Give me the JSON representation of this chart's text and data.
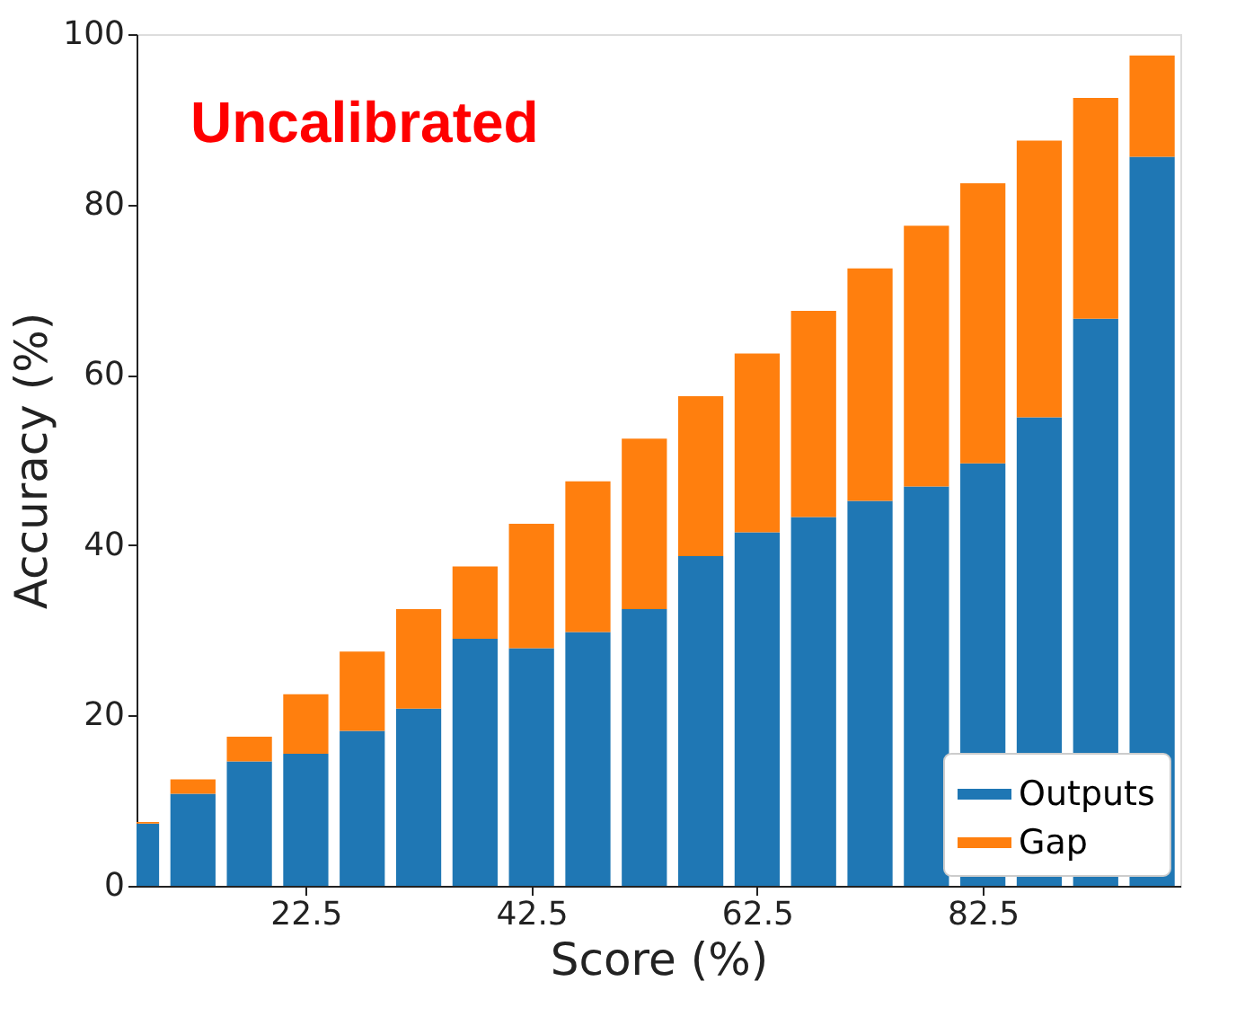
{
  "chart_data": {
    "type": "bar",
    "stacked": true,
    "xlabel": "Score (%)",
    "ylabel": "Accuracy (%)",
    "annotations": [
      "Uncalibrated"
    ],
    "x": [
      7.5,
      12.5,
      17.5,
      22.5,
      27.5,
      32.5,
      37.5,
      42.5,
      47.5,
      52.5,
      57.5,
      62.5,
      67.5,
      72.5,
      77.5,
      82.5,
      87.5,
      92.5,
      97.5
    ],
    "series": [
      {
        "name": "Outputs",
        "color": "#1f77b4",
        "values": [
          7.3,
          10.8,
          14.6,
          15.5,
          18.2,
          20.8,
          29.0,
          27.9,
          29.8,
          32.5,
          38.7,
          41.5,
          43.3,
          45.2,
          46.9,
          49.6,
          55.0,
          66.6,
          85.6
        ]
      },
      {
        "name": "Gap",
        "color": "#ff7f0e",
        "values": [
          0.2,
          1.7,
          2.9,
          7.0,
          9.3,
          11.7,
          8.5,
          14.6,
          17.7,
          20.0,
          18.8,
          21.0,
          24.2,
          27.3,
          30.6,
          32.9,
          32.5,
          25.9,
          11.9
        ]
      }
    ],
    "xlim": [
      7.5,
      100
    ],
    "xticks": [
      22.5,
      42.5,
      62.5,
      82.5
    ],
    "ylim": [
      0,
      100
    ],
    "yticks": [
      0,
      20,
      40,
      60,
      80,
      100
    ],
    "grid": false,
    "legend": "bottom right"
  }
}
